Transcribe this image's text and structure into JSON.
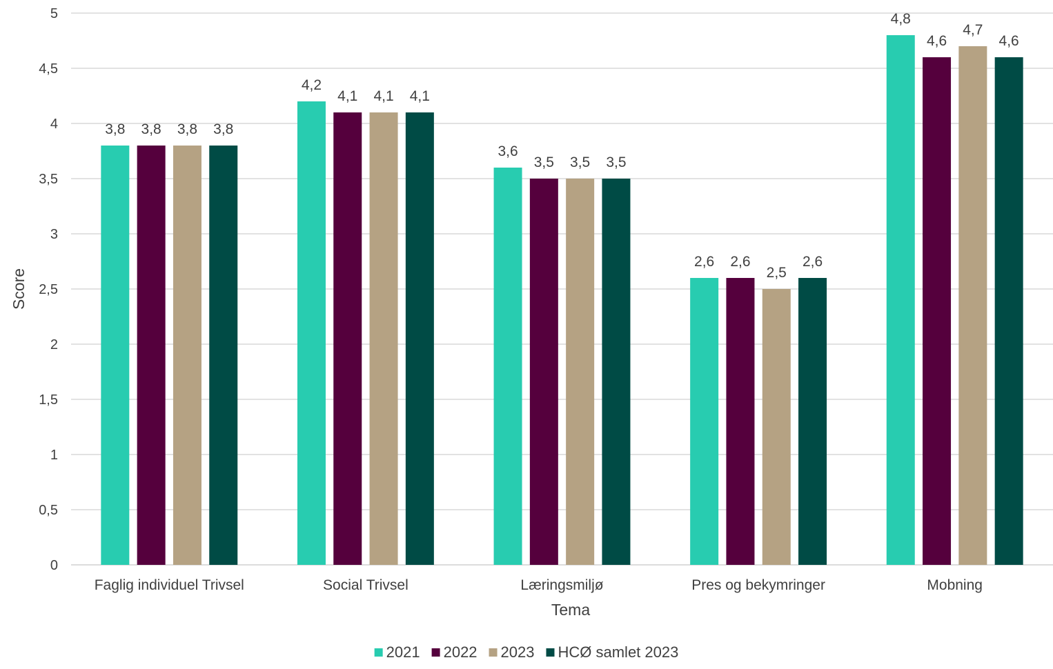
{
  "chart_data": {
    "type": "bar",
    "title": "",
    "xlabel": "Tema",
    "ylabel": "Score",
    "ylim": [
      0,
      5
    ],
    "yticks": [
      "0",
      "0,5",
      "1",
      "1,5",
      "2",
      "2,5",
      "3",
      "3,5",
      "4",
      "4,5",
      "5"
    ],
    "grid": true,
    "legend_position": "bottom",
    "categories": [
      "Faglig individuel Trivsel",
      "Social Trivsel",
      "Læringsmiljø",
      "Pres og bekymringer",
      "Mobning"
    ],
    "series": [
      {
        "name": "2021",
        "color": "#28CCB0",
        "values": [
          3.8,
          4.2,
          3.6,
          2.6,
          4.8
        ],
        "labels": [
          "3,8",
          "4,2",
          "3,6",
          "2,6",
          "4,8"
        ]
      },
      {
        "name": "2022",
        "color": "#55003D",
        "values": [
          3.8,
          4.1,
          3.5,
          2.6,
          4.6
        ],
        "labels": [
          "3,8",
          "4,1",
          "3,5",
          "2,6",
          "4,6"
        ]
      },
      {
        "name": "2023",
        "color": "#B5A283",
        "values": [
          3.8,
          4.1,
          3.5,
          2.5,
          4.7
        ],
        "labels": [
          "3,8",
          "4,1",
          "3,5",
          "2,5",
          "4,7"
        ]
      },
      {
        "name": "HCØ samlet 2023",
        "color": "#004B45",
        "values": [
          3.8,
          4.1,
          3.5,
          2.6,
          4.6
        ],
        "labels": [
          "3,8",
          "4,1",
          "3,5",
          "2,6",
          "4,6"
        ]
      }
    ]
  }
}
